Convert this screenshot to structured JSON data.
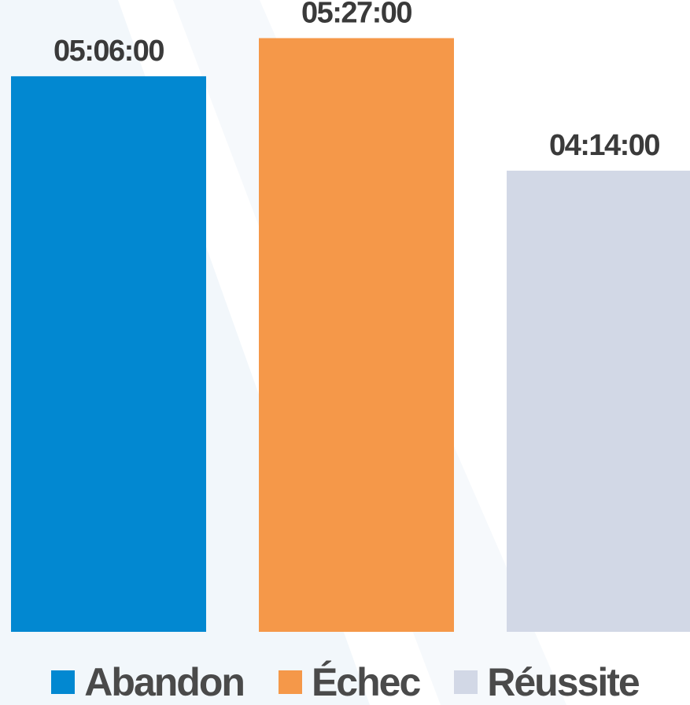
{
  "chart_data": {
    "type": "bar",
    "categories": [
      "Abandon",
      "Échec",
      "Réussite"
    ],
    "values": [
      5.1,
      5.45,
      4.2333
    ],
    "data_labels": [
      "05:06:00",
      "05:27:00",
      "04:14:00"
    ],
    "colors": [
      "#0288d1",
      "#f59849",
      "#d2d8e6"
    ],
    "ylim": [
      0,
      5.8
    ],
    "grid": false,
    "legend_placement": "bottom"
  },
  "legend": {
    "items": [
      {
        "label": "Abandon",
        "color": "#0288d1"
      },
      {
        "label": "Échec",
        "color": "#f59849"
      },
      {
        "label": "Réussite",
        "color": "#d2d8e6"
      }
    ]
  }
}
